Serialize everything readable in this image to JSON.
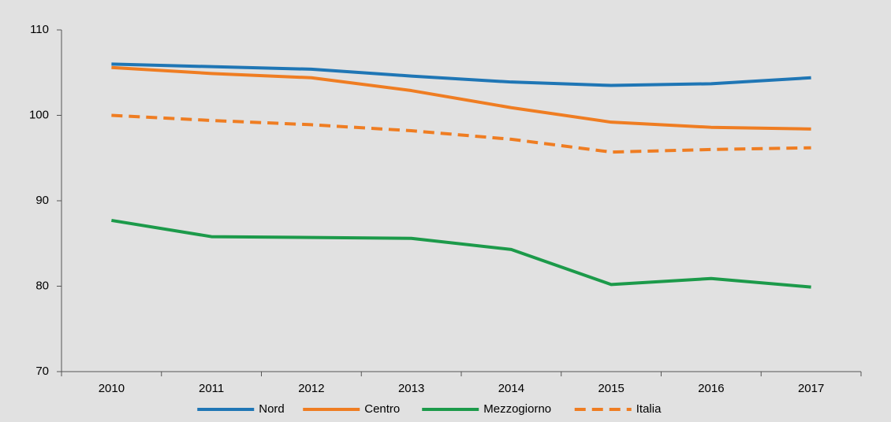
{
  "chart_data": {
    "type": "line",
    "categories": [
      "2010",
      "2011",
      "2012",
      "2013",
      "2014",
      "2015",
      "2016",
      "2017"
    ],
    "series": [
      {
        "name": "Nord",
        "color": "#1f76b5",
        "dash": "solid",
        "values": [
          106.0,
          105.7,
          105.4,
          104.6,
          103.9,
          103.5,
          103.7,
          104.4
        ]
      },
      {
        "name": "Centro",
        "color": "#ef7d22",
        "dash": "solid",
        "values": [
          105.6,
          104.9,
          104.4,
          102.9,
          100.9,
          99.2,
          98.6,
          98.4
        ]
      },
      {
        "name": "Mezzogiorno",
        "color": "#1c9a4a",
        "dash": "solid",
        "values": [
          87.7,
          85.8,
          85.7,
          85.6,
          84.3,
          80.2,
          80.9,
          79.9
        ]
      },
      {
        "name": "Italia",
        "color": "#ef7d22",
        "dash": "dashed",
        "values": [
          100.0,
          99.4,
          98.9,
          98.2,
          97.2,
          95.7,
          96.0,
          96.2
        ]
      }
    ],
    "ylim": [
      70,
      110
    ],
    "yticks": [
      70,
      80,
      90,
      100,
      110
    ],
    "grid": false,
    "legend": "bottom"
  }
}
